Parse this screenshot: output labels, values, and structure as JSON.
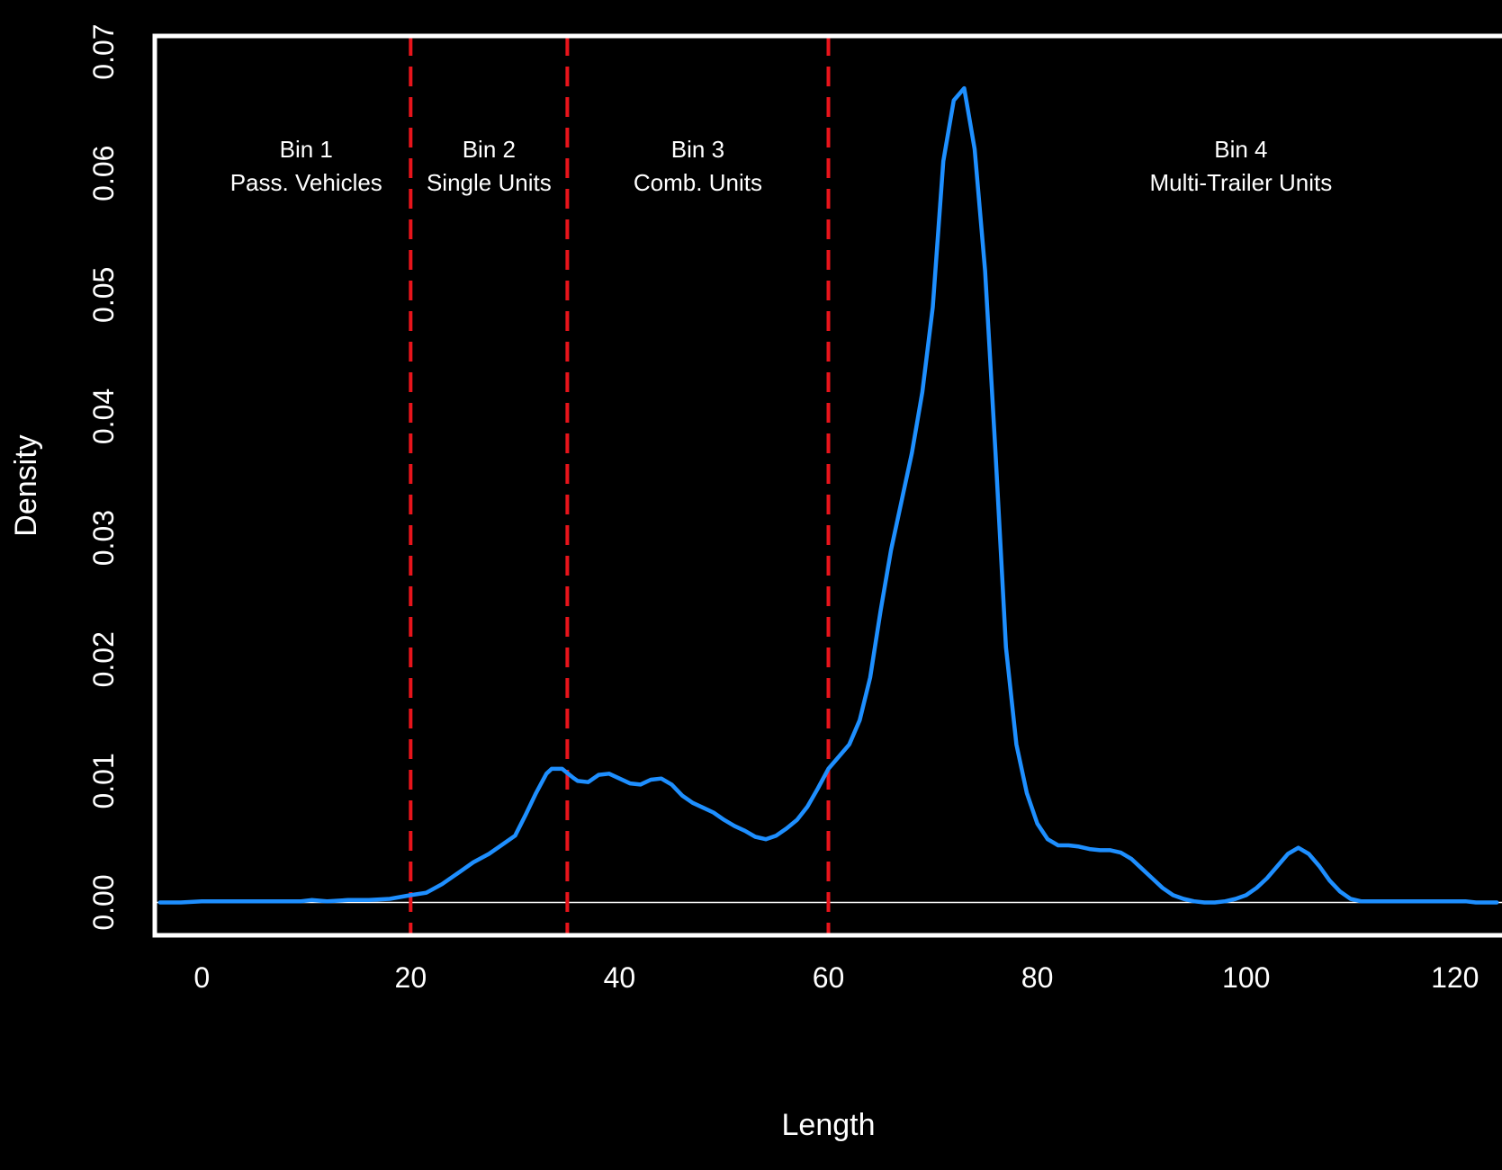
{
  "chart_data": {
    "type": "line",
    "title": "",
    "xlabel": "Length",
    "ylabel": "Density",
    "xlim": [
      -4.5,
      124.5
    ],
    "ylim": [
      -0.0027,
      0.0713
    ],
    "x_ticks": [
      0,
      20,
      40,
      60,
      80,
      100,
      120
    ],
    "x_tick_labels": [
      "0",
      "20",
      "40",
      "60",
      "80",
      "100",
      "120"
    ],
    "y_ticks": [
      0.0,
      0.01,
      0.02,
      0.03,
      0.04,
      0.05,
      0.06,
      0.07
    ],
    "y_tick_labels": [
      "0.00",
      "0.01",
      "0.02",
      "0.03",
      "0.04",
      "0.05",
      "0.06",
      "0.07"
    ],
    "grid": false,
    "legend": "none",
    "background_color": "#000000",
    "frame_color": "#ffffff",
    "series": [
      {
        "color": "#1e8fff",
        "x": [
          -4,
          -2,
          0,
          2,
          4,
          6,
          8,
          9.5,
          10.5,
          12,
          14,
          16,
          18,
          20,
          21.5,
          23,
          24.5,
          26,
          27.5,
          28.5,
          30,
          31,
          32,
          33,
          33.5,
          34.5,
          35.5,
          36,
          37,
          38,
          39,
          40,
          41,
          42,
          43,
          44,
          45,
          46,
          47,
          48,
          49,
          50,
          51,
          52,
          53,
          54,
          55,
          56,
          57,
          58,
          59,
          60,
          61,
          62,
          63,
          64,
          65,
          66,
          67,
          68,
          69,
          70,
          71,
          72,
          73,
          74,
          75,
          76,
          77,
          78,
          79,
          80,
          81,
          82,
          83,
          84,
          85,
          86,
          87,
          88,
          89,
          90,
          91,
          92,
          93,
          94,
          95,
          96,
          97,
          98,
          99,
          100,
          101,
          102,
          103,
          104,
          105,
          106,
          107,
          108,
          109,
          110,
          111,
          112,
          113,
          114,
          115,
          116,
          117,
          118,
          119,
          120,
          121,
          122,
          124
        ],
        "y": [
          0.0,
          0.0,
          0.0001,
          0.0001,
          0.0001,
          0.0001,
          0.0001,
          0.0001,
          0.0002,
          0.0001,
          0.0002,
          0.0002,
          0.0003,
          0.0006,
          0.0008,
          0.0015,
          0.0024,
          0.0033,
          0.004,
          0.0046,
          0.0055,
          0.0072,
          0.009,
          0.0106,
          0.011,
          0.011,
          0.0103,
          0.01,
          0.0099,
          0.0105,
          0.0106,
          0.0102,
          0.0098,
          0.0097,
          0.0101,
          0.0102,
          0.0097,
          0.0088,
          0.0082,
          0.0078,
          0.0074,
          0.0068,
          0.0063,
          0.0059,
          0.0054,
          0.0052,
          0.0055,
          0.0061,
          0.0068,
          0.0079,
          0.0094,
          0.011,
          0.012,
          0.013,
          0.015,
          0.0185,
          0.024,
          0.029,
          0.033,
          0.037,
          0.042,
          0.049,
          0.061,
          0.066,
          0.067,
          0.062,
          0.052,
          0.037,
          0.021,
          0.013,
          0.009,
          0.0065,
          0.0052,
          0.0047,
          0.0047,
          0.0046,
          0.0044,
          0.0043,
          0.0043,
          0.0041,
          0.0036,
          0.0028,
          0.002,
          0.0012,
          0.0006,
          0.0003,
          0.0001,
          0.0,
          0.0,
          0.0001,
          0.0003,
          0.0006,
          0.0012,
          0.002,
          0.003,
          0.004,
          0.0045,
          0.004,
          0.003,
          0.0018,
          0.0009,
          0.0003,
          0.0001,
          0.0001,
          0.0001,
          0.0001,
          0.0001,
          0.0001,
          0.0001,
          0.0001,
          0.0001,
          0.0001,
          0.0001,
          0.0,
          0.0
        ]
      }
    ],
    "hlines": [
      {
        "y": 0.0,
        "color": "#ffffff"
      }
    ],
    "vlines": [
      {
        "x": 20,
        "color": "#e8141b",
        "style": "dashed"
      },
      {
        "x": 35,
        "color": "#e8141b",
        "style": "dashed"
      },
      {
        "x": 60,
        "color": "#e8141b",
        "style": "dashed"
      }
    ],
    "annotations": [
      {
        "name": "bin-1-label",
        "x": 10,
        "lines": [
          "Bin 1",
          "Pass. Vehicles"
        ]
      },
      {
        "name": "bin-2-label",
        "x": 27.5,
        "lines": [
          "Bin 2",
          "Single Units"
        ]
      },
      {
        "name": "bin-3-label",
        "x": 47.5,
        "lines": [
          "Bin 3",
          "Comb. Units"
        ]
      },
      {
        "name": "bin-4-label",
        "x": 99.5,
        "lines": [
          "Bin 4",
          "Multi-Trailer Units"
        ]
      }
    ]
  }
}
